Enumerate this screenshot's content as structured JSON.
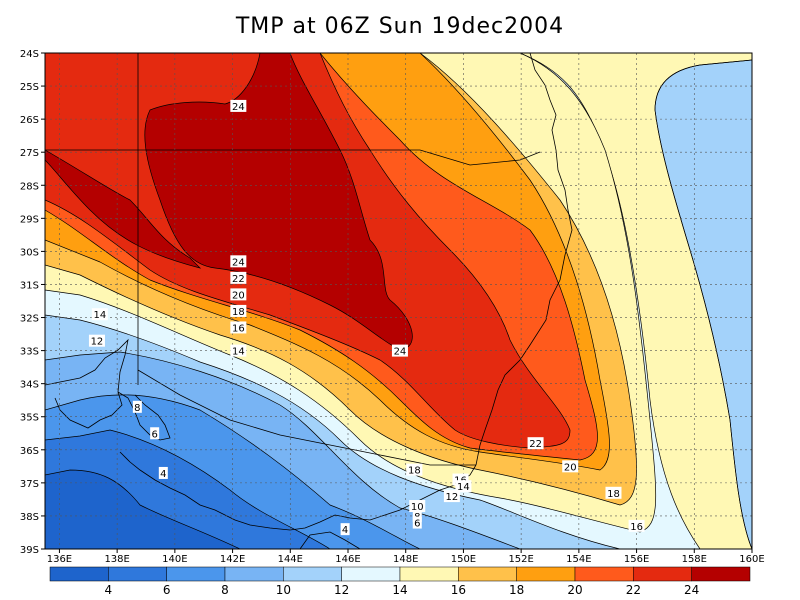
{
  "title": "TMP at 06Z Sun 19dec2004",
  "chart_data": {
    "type": "heatmap",
    "variable": "TMP",
    "units": "",
    "lon_range": [
      135.5,
      160
    ],
    "lat_range": [
      -39,
      -24
    ],
    "lon_ticks": [
      "136E",
      "138E",
      "140E",
      "142E",
      "144E",
      "146E",
      "148E",
      "150E",
      "152E",
      "154E",
      "156E",
      "158E",
      "160E"
    ],
    "lat_ticks": [
      "24S",
      "25S",
      "26S",
      "27S",
      "28S",
      "29S",
      "30S",
      "31S",
      "32S",
      "33S",
      "34S",
      "35S",
      "36S",
      "37S",
      "38S",
      "39S"
    ],
    "grid": true,
    "contour_levels": [
      4,
      6,
      8,
      10,
      12,
      14,
      16,
      18,
      20,
      22,
      24
    ],
    "contour_labels": [
      {
        "text": "24",
        "lon": 142.2,
        "lat": -25.6
      },
      {
        "text": "24",
        "lon": 142.2,
        "lat": -30.3
      },
      {
        "text": "22",
        "lon": 142.2,
        "lat": -30.8
      },
      {
        "text": "20",
        "lon": 142.2,
        "lat": -31.3
      },
      {
        "text": "18",
        "lon": 142.2,
        "lat": -31.8
      },
      {
        "text": "16",
        "lon": 142.2,
        "lat": -32.3
      },
      {
        "text": "14",
        "lon": 142.2,
        "lat": -33.0
      },
      {
        "text": "14",
        "lon": 137.4,
        "lat": -31.9
      },
      {
        "text": "12",
        "lon": 137.3,
        "lat": -32.7
      },
      {
        "text": "24",
        "lon": 147.8,
        "lat": -33.0
      },
      {
        "text": "22",
        "lon": 152.5,
        "lat": -35.8
      },
      {
        "text": "20",
        "lon": 153.7,
        "lat": -36.5
      },
      {
        "text": "18",
        "lon": 148.3,
        "lat": -36.6
      },
      {
        "text": "16",
        "lon": 149.9,
        "lat": -36.9
      },
      {
        "text": "14",
        "lon": 150.0,
        "lat": -37.1
      },
      {
        "text": "12",
        "lon": 149.6,
        "lat": -37.4
      },
      {
        "text": "10",
        "lon": 148.4,
        "lat": -37.7
      },
      {
        "text": "8",
        "lon": 148.4,
        "lat": -38.0
      },
      {
        "text": "6",
        "lon": 148.4,
        "lat": -38.2
      },
      {
        "text": "8",
        "lon": 138.7,
        "lat": -34.7
      },
      {
        "text": "6",
        "lon": 139.3,
        "lat": -35.5
      },
      {
        "text": "4",
        "lon": 139.6,
        "lat": -36.7
      },
      {
        "text": "4",
        "lon": 145.9,
        "lat": -38.4
      },
      {
        "text": "18",
        "lon": 155.2,
        "lat": -37.3
      },
      {
        "text": "16",
        "lon": 156.0,
        "lat": -38.3
      }
    ],
    "colorbar": {
      "labels": [
        "4",
        "6",
        "8",
        "10",
        "12",
        "14",
        "16",
        "18",
        "20",
        "22",
        "24"
      ],
      "colors": [
        "#1e64cc",
        "#2f78dc",
        "#4b96ec",
        "#78b4f4",
        "#a3d2fa",
        "#e4f8ff",
        "#fff8b4",
        "#ffc14a",
        "#ff9f10",
        "#ff5a1c",
        "#e42a10",
        "#b40000"
      ]
    }
  }
}
